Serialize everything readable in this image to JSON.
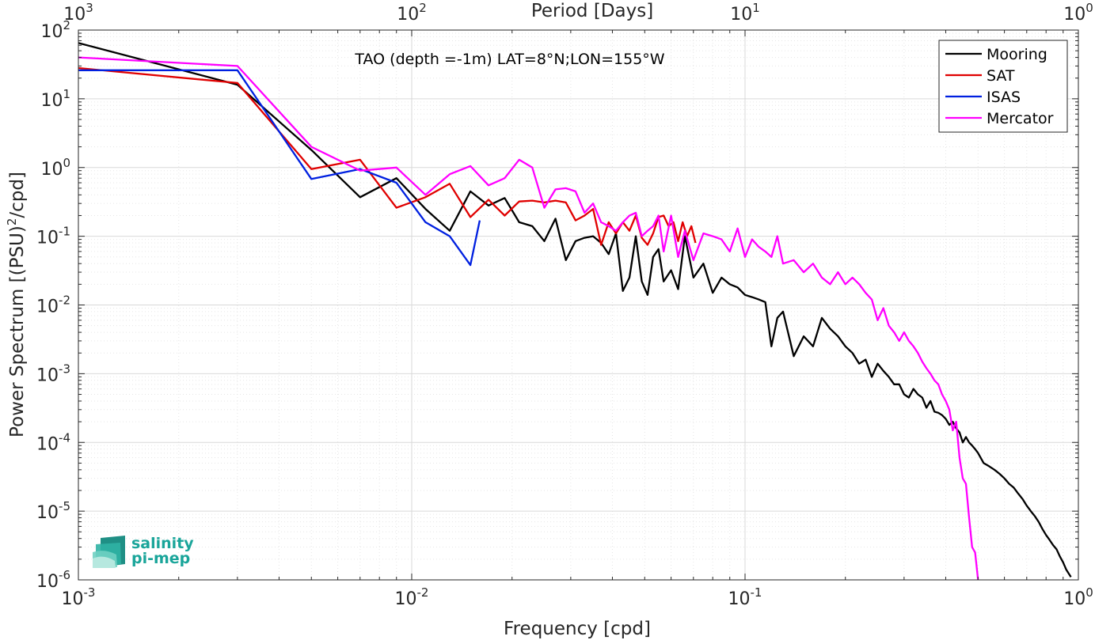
{
  "chart_data": {
    "type": "line",
    "title": "TAO (depth =-1m) LAT=8°N;LON=155°W",
    "xlabel": "Frequency [cpd]",
    "ylabel": "Power Spectrum [(PSU)",
    "ylabel_sup": "2",
    "ylabel_suffix": "/cpd]",
    "top_xlabel": "Period [Days]",
    "x_scale": "log",
    "y_scale": "log",
    "xlim": [
      0.001,
      1
    ],
    "ylim": [
      1e-06,
      100
    ],
    "grid": true,
    "minor_grid": true,
    "legend_position": "top-right",
    "x_ticks": [
      {
        "value": 0.001,
        "base": "10",
        "exp": "-3"
      },
      {
        "value": 0.01,
        "base": "10",
        "exp": "-2"
      },
      {
        "value": 0.1,
        "base": "10",
        "exp": "-1"
      },
      {
        "value": 1,
        "base": "10",
        "exp": "0"
      }
    ],
    "top_ticks": [
      {
        "value": 0.001,
        "base": "10",
        "exp": "3"
      },
      {
        "value": 0.01,
        "base": "10",
        "exp": "2"
      },
      {
        "value": 0.1,
        "base": "10",
        "exp": "1"
      },
      {
        "value": 1,
        "base": "10",
        "exp": "0"
      }
    ],
    "y_ticks": [
      {
        "value": 100,
        "base": "10",
        "exp": "2"
      },
      {
        "value": 10,
        "base": "10",
        "exp": "1"
      },
      {
        "value": 1,
        "base": "10",
        "exp": "0"
      },
      {
        "value": 0.1,
        "base": "10",
        "exp": "-1"
      },
      {
        "value": 0.01,
        "base": "10",
        "exp": "-2"
      },
      {
        "value": 0.001,
        "base": "10",
        "exp": "-3"
      },
      {
        "value": 0.0001,
        "base": "10",
        "exp": "-4"
      },
      {
        "value": 1e-05,
        "base": "10",
        "exp": "-5"
      },
      {
        "value": 1e-06,
        "base": "10",
        "exp": "-6"
      }
    ],
    "series": [
      {
        "name": "Mooring",
        "color": "#000000",
        "x": [
          0.001,
          0.003,
          0.005,
          0.007,
          0.009,
          0.011,
          0.013,
          0.015,
          0.017,
          0.019,
          0.021,
          0.023,
          0.025,
          0.027,
          0.029,
          0.031,
          0.033,
          0.035,
          0.037,
          0.039,
          0.041,
          0.043,
          0.045,
          0.047,
          0.049,
          0.051,
          0.053,
          0.055,
          0.057,
          0.06,
          0.063,
          0.066,
          0.07,
          0.075,
          0.08,
          0.085,
          0.09,
          0.095,
          0.1,
          0.105,
          0.11,
          0.115,
          0.12,
          0.125,
          0.13,
          0.14,
          0.15,
          0.16,
          0.17,
          0.18,
          0.19,
          0.2,
          0.21,
          0.22,
          0.23,
          0.24,
          0.25,
          0.26,
          0.27,
          0.28,
          0.29,
          0.3,
          0.31,
          0.32,
          0.33,
          0.34,
          0.35,
          0.36,
          0.37,
          0.38,
          0.39,
          0.4,
          0.41,
          0.42,
          0.43,
          0.44,
          0.45,
          0.46,
          0.47,
          0.48,
          0.49,
          0.5,
          0.52,
          0.54,
          0.56,
          0.58,
          0.6,
          0.62,
          0.64,
          0.66,
          0.68,
          0.7,
          0.72,
          0.74,
          0.76,
          0.78,
          0.8,
          0.82,
          0.84,
          0.86,
          0.88,
          0.9,
          0.92,
          0.95
        ],
        "y": [
          65,
          16,
          1.8,
          0.37,
          0.7,
          0.25,
          0.12,
          0.45,
          0.28,
          0.36,
          0.16,
          0.14,
          0.085,
          0.18,
          0.045,
          0.085,
          0.095,
          0.1,
          0.08,
          0.055,
          0.11,
          0.016,
          0.025,
          0.1,
          0.022,
          0.014,
          0.05,
          0.065,
          0.022,
          0.032,
          0.017,
          0.1,
          0.025,
          0.04,
          0.015,
          0.025,
          0.02,
          0.018,
          0.014,
          0.013,
          0.012,
          0.011,
          0.0025,
          0.0065,
          0.008,
          0.0018,
          0.0035,
          0.0025,
          0.0065,
          0.0045,
          0.0035,
          0.0025,
          0.002,
          0.0014,
          0.0016,
          0.0009,
          0.0014,
          0.0011,
          0.0009,
          0.0007,
          0.0007,
          0.0005,
          0.00045,
          0.0006,
          0.0005,
          0.00045,
          0.00032,
          0.0004,
          0.00028,
          0.00027,
          0.00025,
          0.00022,
          0.00018,
          0.0002,
          0.00016,
          0.00014,
          0.0001,
          0.00012,
          0.0001,
          9e-05,
          8e-05,
          7e-05,
          5e-05,
          4.5e-05,
          4e-05,
          3.5e-05,
          3e-05,
          2.5e-05,
          2.2e-05,
          1.8e-05,
          1.5e-05,
          1.2e-05,
          1e-05,
          8.5e-06,
          7e-06,
          5.5e-06,
          4.5e-06,
          3.8e-06,
          3.2e-06,
          2.8e-06,
          2.2e-06,
          1.8e-06,
          1.4e-06,
          1.1e-06
        ]
      },
      {
        "name": "SAT",
        "color": "#e00000",
        "x": [
          0.001,
          0.003,
          0.005,
          0.007,
          0.009,
          0.011,
          0.013,
          0.015,
          0.017,
          0.019,
          0.021,
          0.023,
          0.025,
          0.027,
          0.029,
          0.031,
          0.033,
          0.035,
          0.037,
          0.039,
          0.041,
          0.043,
          0.045,
          0.047,
          0.049,
          0.051,
          0.053,
          0.055,
          0.057,
          0.059,
          0.061,
          0.063,
          0.065,
          0.067,
          0.069,
          0.071
        ],
        "y": [
          28,
          17,
          0.95,
          1.3,
          0.26,
          0.37,
          0.58,
          0.19,
          0.34,
          0.2,
          0.32,
          0.33,
          0.31,
          0.33,
          0.31,
          0.17,
          0.2,
          0.25,
          0.075,
          0.16,
          0.11,
          0.16,
          0.12,
          0.2,
          0.095,
          0.075,
          0.11,
          0.19,
          0.2,
          0.14,
          0.16,
          0.085,
          0.16,
          0.1,
          0.14,
          0.08
        ]
      },
      {
        "name": "ISAS",
        "color": "#0020e0",
        "x": [
          0.001,
          0.003,
          0.005,
          0.007,
          0.009,
          0.011,
          0.013,
          0.015,
          0.016
        ],
        "y": [
          26,
          26,
          0.68,
          0.95,
          0.6,
          0.16,
          0.1,
          0.038,
          0.17
        ]
      },
      {
        "name": "Mercator",
        "color": "#ff00ff",
        "x": [
          0.001,
          0.003,
          0.005,
          0.007,
          0.009,
          0.011,
          0.013,
          0.015,
          0.017,
          0.019,
          0.021,
          0.023,
          0.025,
          0.027,
          0.029,
          0.031,
          0.033,
          0.035,
          0.037,
          0.039,
          0.041,
          0.043,
          0.045,
          0.047,
          0.049,
          0.051,
          0.053,
          0.055,
          0.057,
          0.06,
          0.063,
          0.066,
          0.07,
          0.075,
          0.08,
          0.085,
          0.09,
          0.095,
          0.1,
          0.105,
          0.11,
          0.115,
          0.12,
          0.125,
          0.13,
          0.14,
          0.15,
          0.16,
          0.17,
          0.18,
          0.19,
          0.2,
          0.21,
          0.22,
          0.23,
          0.24,
          0.25,
          0.26,
          0.27,
          0.28,
          0.29,
          0.3,
          0.31,
          0.32,
          0.33,
          0.34,
          0.35,
          0.36,
          0.37,
          0.38,
          0.39,
          0.4,
          0.41,
          0.42,
          0.43,
          0.44,
          0.45,
          0.46,
          0.47,
          0.48,
          0.49,
          0.5
        ],
        "y": [
          40,
          30,
          2.0,
          0.9,
          1.0,
          0.4,
          0.8,
          1.05,
          0.55,
          0.7,
          1.3,
          1.0,
          0.26,
          0.48,
          0.5,
          0.45,
          0.22,
          0.3,
          0.16,
          0.14,
          0.12,
          0.16,
          0.2,
          0.22,
          0.1,
          0.12,
          0.14,
          0.2,
          0.06,
          0.2,
          0.05,
          0.12,
          0.045,
          0.11,
          0.1,
          0.09,
          0.06,
          0.13,
          0.05,
          0.09,
          0.07,
          0.06,
          0.05,
          0.1,
          0.04,
          0.045,
          0.03,
          0.04,
          0.025,
          0.02,
          0.03,
          0.02,
          0.025,
          0.02,
          0.015,
          0.012,
          0.006,
          0.009,
          0.005,
          0.004,
          0.003,
          0.004,
          0.003,
          0.0025,
          0.002,
          0.0015,
          0.0012,
          0.001,
          0.0008,
          0.0007,
          0.0005,
          0.0004,
          0.0003,
          0.00015,
          0.0002,
          6e-05,
          3e-05,
          2.5e-05,
          8e-06,
          3e-06,
          2.5e-06,
          1e-06
        ]
      }
    ]
  },
  "logo": {
    "line1": "salinity",
    "line2": "pi-mep",
    "color": "#1aa59a"
  }
}
